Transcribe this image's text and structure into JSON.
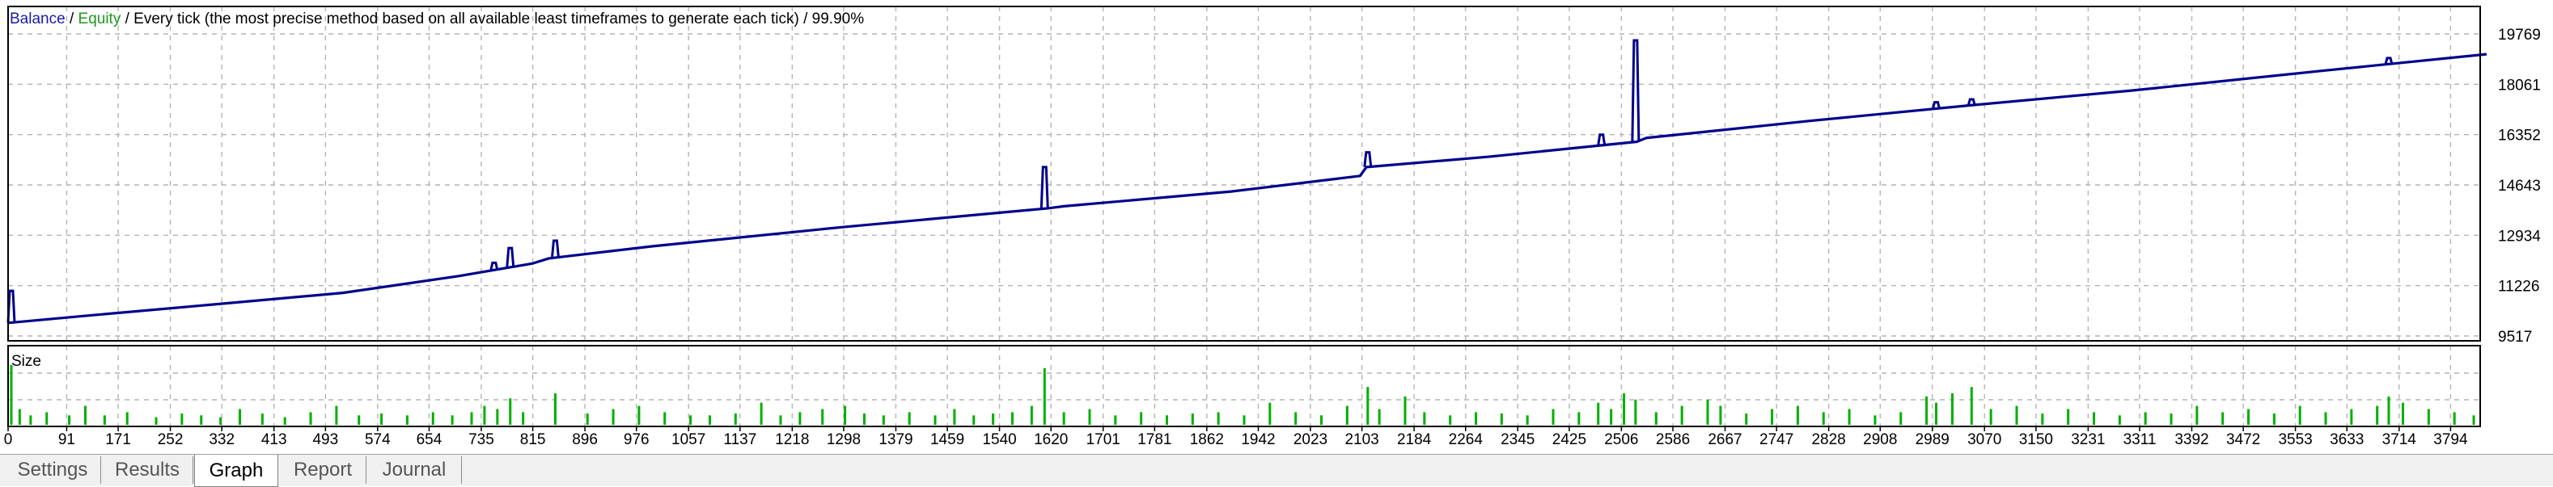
{
  "legend": {
    "balance_label": "Balance",
    "separator": " / ",
    "equity_label": "Equity",
    "description": " / Every tick (the most precise method based on all available least timeframes to generate each tick) / 99.90%"
  },
  "colors": {
    "balance": "#00008b",
    "equity": "#1e9a1e",
    "size": "#00b000",
    "grid": "#b4b4b4",
    "frame": "#000000"
  },
  "size_panel": {
    "label": "Size"
  },
  "tabs": [
    {
      "label": "Settings",
      "active": false
    },
    {
      "label": "Results",
      "active": false
    },
    {
      "label": "Graph",
      "active": true
    },
    {
      "label": "Report",
      "active": false
    },
    {
      "label": "Journal",
      "active": false
    }
  ],
  "chart_data": [
    {
      "type": "line",
      "title": "",
      "xlabel": "",
      "ylabel": "",
      "x_ticks": [
        "0",
        "91",
        "171",
        "252",
        "332",
        "413",
        "493",
        "574",
        "654",
        "735",
        "815",
        "896",
        "976",
        "1057",
        "1137",
        "1218",
        "1298",
        "1379",
        "1459",
        "1540",
        "1620",
        "1701",
        "1781",
        "1862",
        "1942",
        "2023",
        "2103",
        "2184",
        "2264",
        "2345",
        "2425",
        "2506",
        "2586",
        "2667",
        "2747",
        "2828",
        "2908",
        "2989",
        "3070",
        "3150",
        "3231",
        "3311",
        "3392",
        "3472",
        "3553",
        "3633",
        "3714",
        "3794"
      ],
      "y_ticks": [
        "19769",
        "18061",
        "16352",
        "14643",
        "12934",
        "11226",
        "9517"
      ],
      "ylim": [
        9517,
        19769
      ],
      "xlim": [
        0,
        3840
      ],
      "grid": true,
      "series": [
        {
          "name": "Balance",
          "x": [
            0,
            120,
            300,
            520,
            700,
            815,
            840,
            1000,
            1300,
            1615,
            1640,
            1900,
            2100,
            2110,
            2300,
            2530,
            2545,
            2800,
            3050,
            3300,
            3600,
            3850
          ],
          "y": [
            9960,
            10200,
            10550,
            10980,
            11550,
            11980,
            12150,
            12560,
            13220,
            13850,
            13920,
            14420,
            14950,
            15250,
            15600,
            16110,
            16240,
            16820,
            17350,
            17850,
            18530,
            19080
          ]
        },
        {
          "name": "Equity",
          "spikes": [
            {
              "x": 5,
              "y": 11050
            },
            {
              "x": 755,
              "y": 12000
            },
            {
              "x": 780,
              "y": 12500
            },
            {
              "x": 850,
              "y": 12750
            },
            {
              "x": 1610,
              "y": 15250
            },
            {
              "x": 2112,
              "y": 15750
            },
            {
              "x": 2475,
              "y": 16350
            },
            {
              "x": 2528,
              "y": 19550
            },
            {
              "x": 2995,
              "y": 17450
            },
            {
              "x": 3050,
              "y": 17550
            },
            {
              "x": 3698,
              "y": 18950
            }
          ]
        }
      ]
    },
    {
      "type": "bar",
      "title": "Size",
      "xlabel": "",
      "ylabel": "",
      "ylim": [
        0,
        1
      ],
      "xlim": [
        0,
        3840
      ],
      "grid": true,
      "bars": [
        {
          "x": 5,
          "v": 0.95
        },
        {
          "x": 18,
          "v": 0.25
        },
        {
          "x": 35,
          "v": 0.15
        },
        {
          "x": 60,
          "v": 0.2
        },
        {
          "x": 95,
          "v": 0.15
        },
        {
          "x": 120,
          "v": 0.3
        },
        {
          "x": 150,
          "v": 0.15
        },
        {
          "x": 185,
          "v": 0.2
        },
        {
          "x": 230,
          "v": 0.12
        },
        {
          "x": 270,
          "v": 0.18
        },
        {
          "x": 300,
          "v": 0.15
        },
        {
          "x": 330,
          "v": 0.12
        },
        {
          "x": 360,
          "v": 0.25
        },
        {
          "x": 395,
          "v": 0.18
        },
        {
          "x": 430,
          "v": 0.12
        },
        {
          "x": 470,
          "v": 0.2
        },
        {
          "x": 510,
          "v": 0.3
        },
        {
          "x": 545,
          "v": 0.15
        },
        {
          "x": 580,
          "v": 0.18
        },
        {
          "x": 620,
          "v": 0.15
        },
        {
          "x": 660,
          "v": 0.2
        },
        {
          "x": 690,
          "v": 0.15
        },
        {
          "x": 720,
          "v": 0.2
        },
        {
          "x": 740,
          "v": 0.3
        },
        {
          "x": 760,
          "v": 0.25
        },
        {
          "x": 780,
          "v": 0.42
        },
        {
          "x": 800,
          "v": 0.2
        },
        {
          "x": 850,
          "v": 0.5
        },
        {
          "x": 900,
          "v": 0.18
        },
        {
          "x": 940,
          "v": 0.25
        },
        {
          "x": 980,
          "v": 0.3
        },
        {
          "x": 1020,
          "v": 0.2
        },
        {
          "x": 1060,
          "v": 0.15
        },
        {
          "x": 1090,
          "v": 0.15
        },
        {
          "x": 1130,
          "v": 0.18
        },
        {
          "x": 1170,
          "v": 0.35
        },
        {
          "x": 1200,
          "v": 0.15
        },
        {
          "x": 1230,
          "v": 0.2
        },
        {
          "x": 1265,
          "v": 0.25
        },
        {
          "x": 1300,
          "v": 0.3
        },
        {
          "x": 1330,
          "v": 0.18
        },
        {
          "x": 1360,
          "v": 0.15
        },
        {
          "x": 1400,
          "v": 0.2
        },
        {
          "x": 1440,
          "v": 0.15
        },
        {
          "x": 1470,
          "v": 0.25
        },
        {
          "x": 1500,
          "v": 0.15
        },
        {
          "x": 1530,
          "v": 0.18
        },
        {
          "x": 1560,
          "v": 0.2
        },
        {
          "x": 1590,
          "v": 0.3
        },
        {
          "x": 1610,
          "v": 0.9
        },
        {
          "x": 1640,
          "v": 0.2
        },
        {
          "x": 1680,
          "v": 0.25
        },
        {
          "x": 1720,
          "v": 0.15
        },
        {
          "x": 1760,
          "v": 0.2
        },
        {
          "x": 1800,
          "v": 0.15
        },
        {
          "x": 1840,
          "v": 0.18
        },
        {
          "x": 1880,
          "v": 0.2
        },
        {
          "x": 1920,
          "v": 0.15
        },
        {
          "x": 1960,
          "v": 0.35
        },
        {
          "x": 2000,
          "v": 0.2
        },
        {
          "x": 2040,
          "v": 0.15
        },
        {
          "x": 2080,
          "v": 0.3
        },
        {
          "x": 2112,
          "v": 0.6
        },
        {
          "x": 2130,
          "v": 0.25
        },
        {
          "x": 2170,
          "v": 0.45
        },
        {
          "x": 2200,
          "v": 0.2
        },
        {
          "x": 2240,
          "v": 0.15
        },
        {
          "x": 2280,
          "v": 0.2
        },
        {
          "x": 2320,
          "v": 0.18
        },
        {
          "x": 2360,
          "v": 0.15
        },
        {
          "x": 2400,
          "v": 0.25
        },
        {
          "x": 2440,
          "v": 0.2
        },
        {
          "x": 2470,
          "v": 0.35
        },
        {
          "x": 2490,
          "v": 0.25
        },
        {
          "x": 2510,
          "v": 0.5
        },
        {
          "x": 2528,
          "v": 0.4
        },
        {
          "x": 2560,
          "v": 0.2
        },
        {
          "x": 2600,
          "v": 0.3
        },
        {
          "x": 2640,
          "v": 0.4
        },
        {
          "x": 2660,
          "v": 0.3
        },
        {
          "x": 2700,
          "v": 0.18
        },
        {
          "x": 2740,
          "v": 0.25
        },
        {
          "x": 2780,
          "v": 0.3
        },
        {
          "x": 2820,
          "v": 0.2
        },
        {
          "x": 2860,
          "v": 0.25
        },
        {
          "x": 2900,
          "v": 0.15
        },
        {
          "x": 2940,
          "v": 0.2
        },
        {
          "x": 2980,
          "v": 0.45
        },
        {
          "x": 2995,
          "v": 0.35
        },
        {
          "x": 3020,
          "v": 0.5
        },
        {
          "x": 3050,
          "v": 0.6
        },
        {
          "x": 3080,
          "v": 0.25
        },
        {
          "x": 3120,
          "v": 0.3
        },
        {
          "x": 3160,
          "v": 0.18
        },
        {
          "x": 3200,
          "v": 0.25
        },
        {
          "x": 3240,
          "v": 0.2
        },
        {
          "x": 3280,
          "v": 0.15
        },
        {
          "x": 3320,
          "v": 0.2
        },
        {
          "x": 3360,
          "v": 0.18
        },
        {
          "x": 3400,
          "v": 0.3
        },
        {
          "x": 3440,
          "v": 0.2
        },
        {
          "x": 3480,
          "v": 0.25
        },
        {
          "x": 3520,
          "v": 0.18
        },
        {
          "x": 3560,
          "v": 0.3
        },
        {
          "x": 3600,
          "v": 0.2
        },
        {
          "x": 3640,
          "v": 0.25
        },
        {
          "x": 3680,
          "v": 0.3
        },
        {
          "x": 3698,
          "v": 0.45
        },
        {
          "x": 3720,
          "v": 0.35
        },
        {
          "x": 3760,
          "v": 0.25
        },
        {
          "x": 3800,
          "v": 0.2
        },
        {
          "x": 3830,
          "v": 0.15
        }
      ]
    }
  ]
}
